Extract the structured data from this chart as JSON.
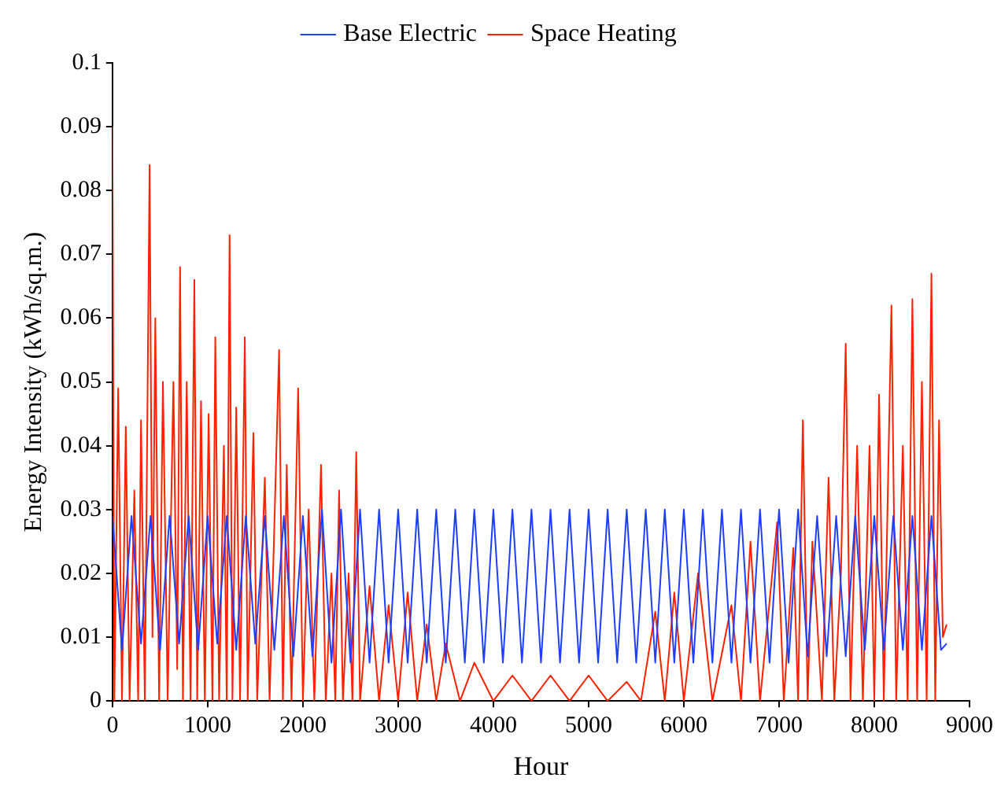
{
  "chart_data": {
    "type": "line",
    "xlabel": "Hour",
    "ylabel": "Energy Intensity (kWh/sq.m.)",
    "xlim": [
      0,
      9000
    ],
    "xticks": [
      0,
      1000,
      2000,
      3000,
      4000,
      5000,
      6000,
      7000,
      8000,
      9000
    ],
    "ylim": [
      0,
      0.1
    ],
    "yticks": [
      0,
      0.01,
      0.02,
      0.03,
      0.04,
      0.05,
      0.06,
      0.07,
      0.08,
      0.09,
      0.1
    ],
    "grid": false,
    "legend": "top",
    "marker": "none",
    "line_style": "solid",
    "series": [
      {
        "name": "Base Electric",
        "color": "#1f3fff",
        "x": [
          0,
          100,
          200,
          300,
          400,
          500,
          600,
          700,
          800,
          900,
          1000,
          1100,
          1200,
          1300,
          1400,
          1500,
          1600,
          1700,
          1800,
          1900,
          2000,
          2100,
          2200,
          2300,
          2400,
          2500,
          2600,
          2700,
          2800,
          2900,
          3000,
          3100,
          3200,
          3300,
          3400,
          3500,
          3600,
          3700,
          3800,
          3900,
          4000,
          4100,
          4200,
          4300,
          4400,
          4500,
          4600,
          4700,
          4800,
          4900,
          5000,
          5100,
          5200,
          5300,
          5400,
          5500,
          5600,
          5700,
          5800,
          5900,
          6000,
          6100,
          6200,
          6300,
          6400,
          6500,
          6600,
          6700,
          6800,
          6900,
          7000,
          7100,
          7200,
          7300,
          7400,
          7500,
          7600,
          7700,
          7800,
          7900,
          8000,
          8100,
          8200,
          8300,
          8400,
          8500,
          8600,
          8700,
          8760
        ],
        "values": [
          0.029,
          0.008,
          0.029,
          0.009,
          0.029,
          0.008,
          0.029,
          0.009,
          0.029,
          0.008,
          0.029,
          0.009,
          0.029,
          0.008,
          0.029,
          0.009,
          0.029,
          0.008,
          0.029,
          0.007,
          0.029,
          0.007,
          0.03,
          0.006,
          0.03,
          0.006,
          0.03,
          0.006,
          0.03,
          0.006,
          0.03,
          0.006,
          0.03,
          0.006,
          0.03,
          0.006,
          0.03,
          0.006,
          0.03,
          0.006,
          0.03,
          0.006,
          0.03,
          0.006,
          0.03,
          0.006,
          0.03,
          0.006,
          0.03,
          0.006,
          0.03,
          0.006,
          0.03,
          0.006,
          0.03,
          0.006,
          0.03,
          0.006,
          0.03,
          0.006,
          0.03,
          0.006,
          0.03,
          0.006,
          0.03,
          0.006,
          0.03,
          0.006,
          0.03,
          0.006,
          0.03,
          0.006,
          0.03,
          0.007,
          0.029,
          0.007,
          0.029,
          0.007,
          0.029,
          0.008,
          0.029,
          0.008,
          0.029,
          0.008,
          0.029,
          0.008,
          0.029,
          0.008,
          0.009
        ]
      },
      {
        "name": "Space Heating",
        "color": "#ff2200",
        "x": [
          0,
          20,
          60,
          100,
          140,
          180,
          230,
          270,
          300,
          340,
          390,
          420,
          450,
          490,
          530,
          580,
          640,
          680,
          710,
          740,
          780,
          820,
          860,
          890,
          930,
          970,
          1010,
          1050,
          1080,
          1120,
          1170,
          1200,
          1230,
          1260,
          1300,
          1340,
          1390,
          1420,
          1480,
          1520,
          1600,
          1650,
          1750,
          1790,
          1830,
          1880,
          1950,
          2000,
          2060,
          2120,
          2190,
          2240,
          2300,
          2340,
          2380,
          2420,
          2480,
          2520,
          2560,
          2600,
          2700,
          2800,
          2900,
          3000,
          3100,
          3200,
          3300,
          3400,
          3500,
          3650,
          3800,
          4000,
          4200,
          4400,
          4600,
          4800,
          5000,
          5200,
          5400,
          5550,
          5700,
          5800,
          5900,
          6000,
          6150,
          6300,
          6500,
          6600,
          6700,
          6800,
          6980,
          7050,
          7150,
          7200,
          7250,
          7300,
          7350,
          7450,
          7520,
          7580,
          7650,
          7700,
          7750,
          7820,
          7880,
          7950,
          8000,
          8050,
          8100,
          8180,
          8230,
          8300,
          8350,
          8400,
          8450,
          8500,
          8550,
          8600,
          8640,
          8680,
          8720,
          8760
        ],
        "values": [
          0.09,
          0,
          0.049,
          0,
          0.043,
          0,
          0.033,
          0,
          0.044,
          0,
          0.084,
          0.01,
          0.06,
          0,
          0.05,
          0,
          0.05,
          0.005,
          0.068,
          0,
          0.05,
          0,
          0.066,
          0,
          0.047,
          0,
          0.045,
          0,
          0.057,
          0,
          0.04,
          0,
          0.073,
          0,
          0.046,
          0,
          0.057,
          0,
          0.042,
          0,
          0.035,
          0,
          0.055,
          0,
          0.037,
          0,
          0.049,
          0,
          0.03,
          0,
          0.037,
          0,
          0.02,
          0,
          0.033,
          0,
          0.02,
          0,
          0.039,
          0,
          0.018,
          0,
          0.015,
          0,
          0.017,
          0,
          0.012,
          0,
          0.009,
          0,
          0.006,
          0,
          0.004,
          0,
          0.004,
          0,
          0.004,
          0,
          0.003,
          0,
          0.014,
          0,
          0.017,
          0,
          0.02,
          0,
          0.015,
          0,
          0.025,
          0,
          0.028,
          0,
          0.024,
          0,
          0.044,
          0,
          0.025,
          0,
          0.035,
          0,
          0.02,
          0.056,
          0,
          0.04,
          0,
          0.04,
          0,
          0.048,
          0,
          0.062,
          0,
          0.04,
          0,
          0.063,
          0,
          0.05,
          0,
          0.067,
          0,
          0.044,
          0.01,
          0.012
        ]
      }
    ]
  }
}
